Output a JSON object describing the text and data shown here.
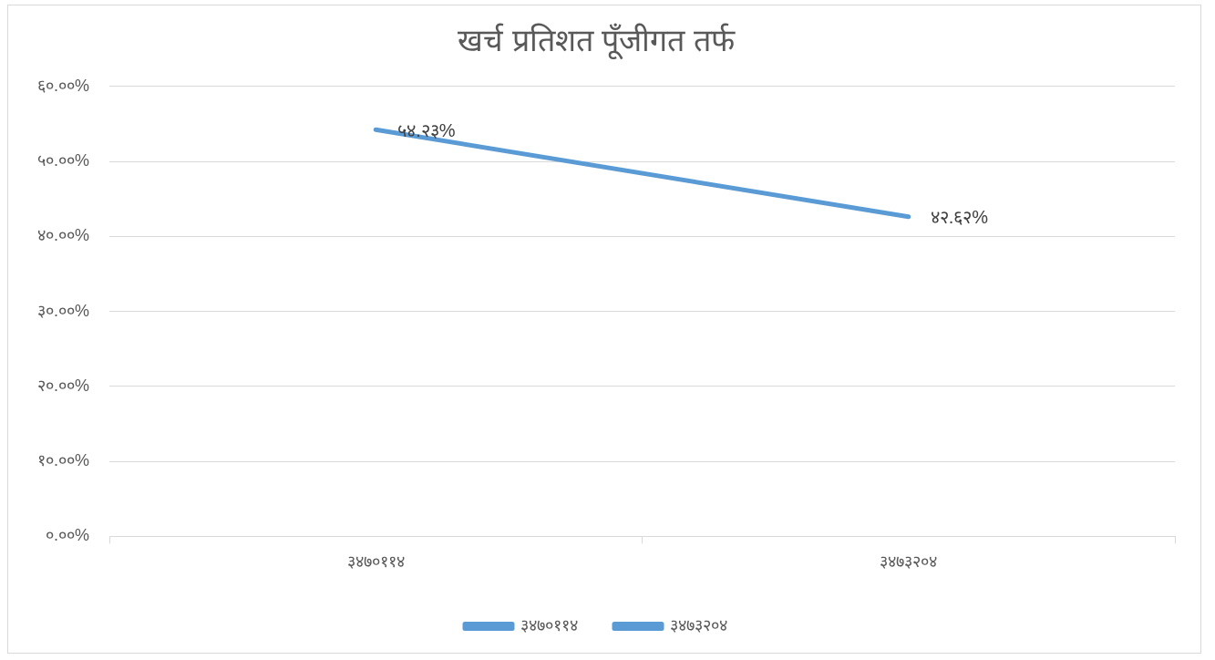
{
  "chart_data": {
    "type": "line",
    "title": "खर्च प्रतिशत पूँजीगत तर्फ",
    "categories": [
      "३४७०११४",
      "३४७३२०४"
    ],
    "series": [
      {
        "name": "३४७०११४",
        "color": "#5b9bd5",
        "values": [
          54.23,
          42.62
        ],
        "value_labels": [
          "५४.२३%",
          "४२.६२%"
        ]
      },
      {
        "name": "३४७३२०४",
        "color": "#5b9bd5",
        "values": [
          null,
          null
        ]
      }
    ],
    "ylim": [
      0,
      60
    ],
    "yticks": [
      {
        "value": 0,
        "label": "०.००%"
      },
      {
        "value": 10,
        "label": "१०.००%"
      },
      {
        "value": 20,
        "label": "२०.००%"
      },
      {
        "value": 30,
        "label": "३०.००%"
      },
      {
        "value": 40,
        "label": "४०.००%"
      },
      {
        "value": 50,
        "label": "५०.००%"
      },
      {
        "value": 60,
        "label": "६०.००%"
      }
    ],
    "grid": "y",
    "legend": "bottom",
    "marker": "none",
    "line_style": "solid"
  }
}
